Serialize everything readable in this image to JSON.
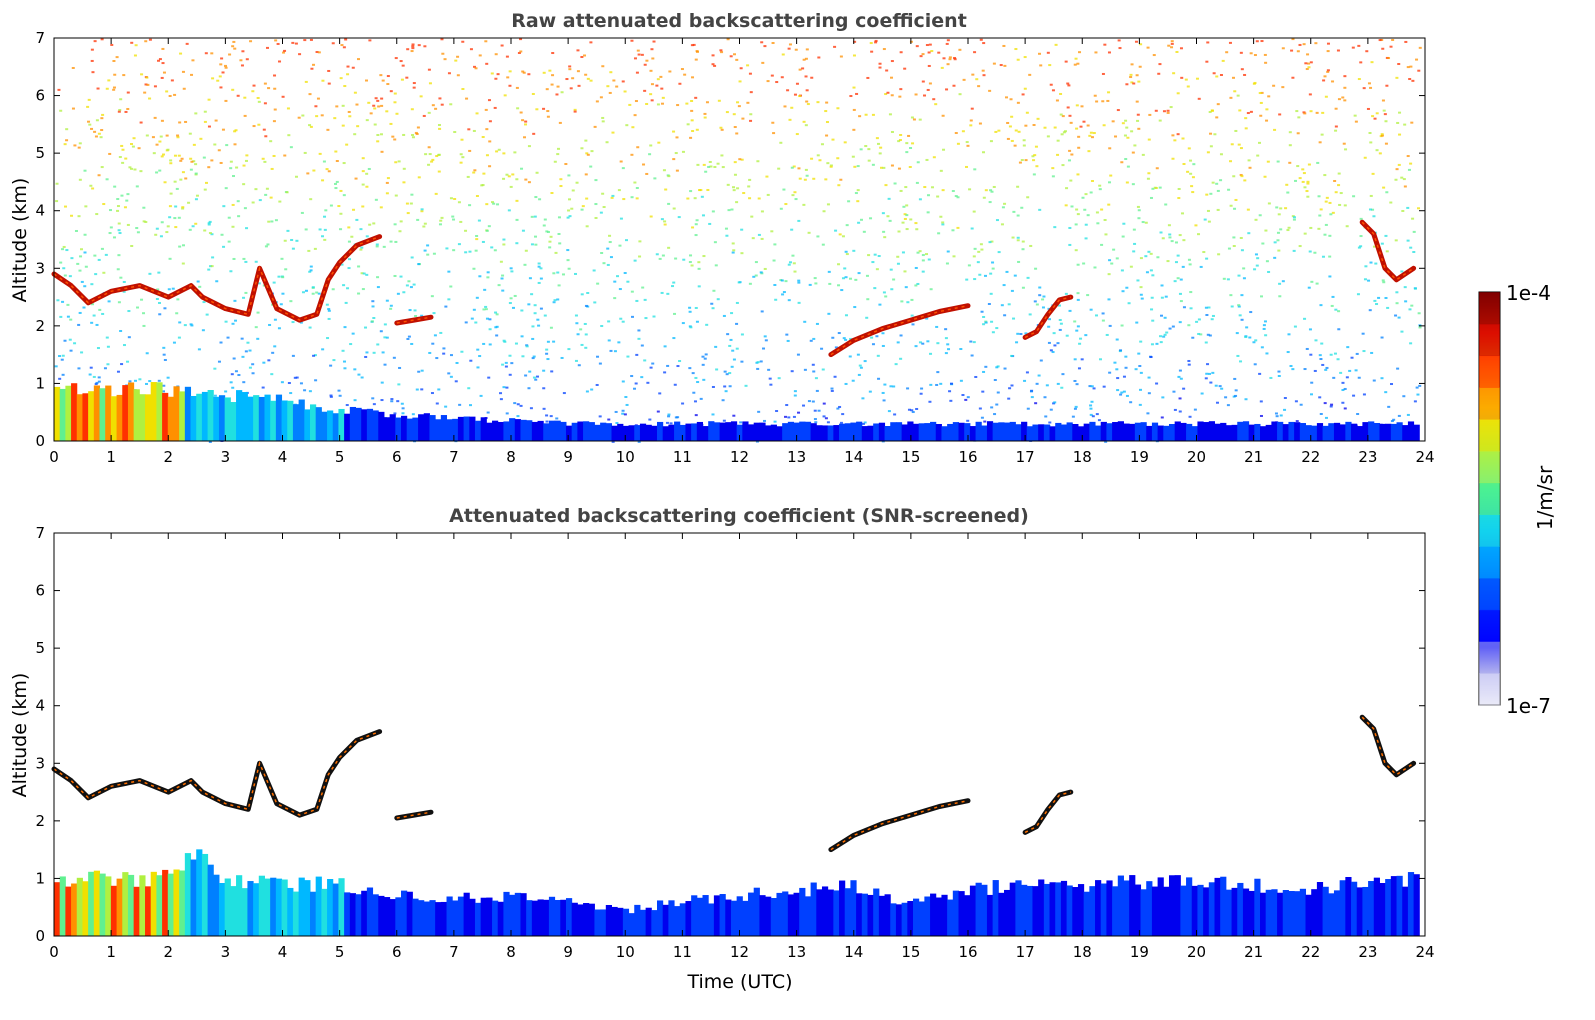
{
  "chart_data": [
    {
      "type": "heatmap",
      "title": "Raw attenuated backscattering coefficient",
      "xlabel": "",
      "ylabel": "Altitude (km)",
      "xlim": [
        0,
        24
      ],
      "ylim": [
        0,
        7
      ],
      "x_ticks": [
        "0",
        "1",
        "2",
        "3",
        "4",
        "5",
        "6",
        "7",
        "8",
        "9",
        "10",
        "11",
        "12",
        "13",
        "14",
        "15",
        "16",
        "17",
        "18",
        "19",
        "20",
        "21",
        "22",
        "23",
        "24"
      ],
      "y_ticks": [
        "0",
        "1",
        "2",
        "3",
        "4",
        "5",
        "6",
        "7"
      ],
      "grid": false,
      "background_noise": true,
      "features": [
        {
          "kind": "boundary_layer",
          "points": [
            [
              0,
              0.9
            ],
            [
              1,
              0.9
            ],
            [
              2,
              0.9
            ],
            [
              3,
              0.8
            ],
            [
              4,
              0.7
            ],
            [
              5,
              0.55
            ],
            [
              6,
              0.45
            ],
            [
              7,
              0.4
            ],
            [
              8,
              0.35
            ],
            [
              9,
              0.3
            ],
            [
              10,
              0.3
            ],
            [
              11,
              0.3
            ],
            [
              12,
              0.3
            ],
            [
              13,
              0.3
            ],
            [
              14,
              0.3
            ],
            [
              15,
              0.3
            ],
            [
              16,
              0.3
            ],
            [
              17,
              0.3
            ],
            [
              18,
              0.3
            ],
            [
              19,
              0.3
            ],
            [
              20,
              0.3
            ],
            [
              21,
              0.3
            ],
            [
              22,
              0.3
            ],
            [
              23,
              0.3
            ],
            [
              23.9,
              0.3
            ]
          ]
        },
        {
          "kind": "cloud",
          "points": [
            [
              0,
              2.9
            ],
            [
              0.3,
              2.7
            ],
            [
              0.6,
              2.4
            ],
            [
              1.0,
              2.6
            ],
            [
              1.5,
              2.7
            ],
            [
              2.0,
              2.5
            ],
            [
              2.4,
              2.7
            ],
            [
              2.6,
              2.5
            ],
            [
              3.0,
              2.3
            ],
            [
              3.4,
              2.2
            ],
            [
              3.6,
              3.0
            ],
            [
              3.9,
              2.3
            ],
            [
              4.3,
              2.1
            ],
            [
              4.6,
              2.2
            ],
            [
              4.8,
              2.8
            ],
            [
              5.0,
              3.1
            ],
            [
              5.3,
              3.4
            ],
            [
              5.7,
              3.55
            ]
          ]
        },
        {
          "kind": "cloud",
          "points": [
            [
              6.0,
              2.05
            ],
            [
              6.3,
              2.1
            ],
            [
              6.6,
              2.15
            ]
          ]
        },
        {
          "kind": "cloud",
          "points": [
            [
              13.6,
              1.5
            ],
            [
              14.0,
              1.75
            ],
            [
              14.5,
              1.95
            ],
            [
              15.0,
              2.1
            ],
            [
              15.5,
              2.25
            ],
            [
              16.0,
              2.35
            ]
          ]
        },
        {
          "kind": "cloud",
          "points": [
            [
              17.0,
              1.8
            ],
            [
              17.2,
              1.9
            ],
            [
              17.4,
              2.2
            ],
            [
              17.6,
              2.45
            ],
            [
              17.8,
              2.5
            ]
          ]
        },
        {
          "kind": "cloud",
          "points": [
            [
              22.9,
              3.8
            ],
            [
              23.1,
              3.6
            ],
            [
              23.3,
              3.0
            ],
            [
              23.5,
              2.8
            ],
            [
              23.8,
              3.0
            ]
          ]
        }
      ]
    },
    {
      "type": "heatmap",
      "title": "Attenuated backscattering coefficient (SNR-screened)",
      "xlabel": "Time (UTC)",
      "ylabel": "Altitude (km)",
      "xlim": [
        0,
        24
      ],
      "ylim": [
        0,
        7
      ],
      "x_ticks": [
        "0",
        "1",
        "2",
        "3",
        "4",
        "5",
        "6",
        "7",
        "8",
        "9",
        "10",
        "11",
        "12",
        "13",
        "14",
        "15",
        "16",
        "17",
        "18",
        "19",
        "20",
        "21",
        "22",
        "23",
        "24"
      ],
      "y_ticks": [
        "0",
        "1",
        "2",
        "3",
        "4",
        "5",
        "6",
        "7"
      ],
      "grid": false,
      "background_noise": false,
      "features": [
        {
          "kind": "boundary_layer",
          "points": [
            [
              0,
              1.0
            ],
            [
              1,
              1.0
            ],
            [
              2,
              1.0
            ],
            [
              2.5,
              1.4
            ],
            [
              3,
              1.0
            ],
            [
              4,
              0.9
            ],
            [
              5,
              0.9
            ],
            [
              6,
              0.7
            ],
            [
              7,
              0.65
            ],
            [
              8,
              0.7
            ],
            [
              9,
              0.6
            ],
            [
              10,
              0.45
            ],
            [
              11,
              0.6
            ],
            [
              12,
              0.7
            ],
            [
              13,
              0.8
            ],
            [
              14,
              0.85
            ],
            [
              15,
              0.55
            ],
            [
              16,
              0.8
            ],
            [
              17,
              0.9
            ],
            [
              18,
              0.9
            ],
            [
              19,
              0.95
            ],
            [
              20,
              1.0
            ],
            [
              21,
              0.9
            ],
            [
              22,
              0.8
            ],
            [
              23,
              0.95
            ],
            [
              23.9,
              1.0
            ]
          ]
        },
        {
          "kind": "cloud",
          "points": [
            [
              0,
              2.9
            ],
            [
              0.3,
              2.7
            ],
            [
              0.6,
              2.4
            ],
            [
              1.0,
              2.6
            ],
            [
              1.5,
              2.7
            ],
            [
              2.0,
              2.5
            ],
            [
              2.4,
              2.7
            ],
            [
              2.6,
              2.5
            ],
            [
              3.0,
              2.3
            ],
            [
              3.4,
              2.2
            ],
            [
              3.6,
              3.0
            ],
            [
              3.9,
              2.3
            ],
            [
              4.3,
              2.1
            ],
            [
              4.6,
              2.2
            ],
            [
              4.8,
              2.8
            ],
            [
              5.0,
              3.1
            ],
            [
              5.3,
              3.4
            ],
            [
              5.7,
              3.55
            ]
          ]
        },
        {
          "kind": "cloud",
          "points": [
            [
              6.0,
              2.05
            ],
            [
              6.3,
              2.1
            ],
            [
              6.6,
              2.15
            ]
          ]
        },
        {
          "kind": "cloud",
          "points": [
            [
              13.6,
              1.5
            ],
            [
              14.0,
              1.75
            ],
            [
              14.5,
              1.95
            ],
            [
              15.0,
              2.1
            ],
            [
              15.5,
              2.25
            ],
            [
              16.0,
              2.35
            ]
          ]
        },
        {
          "kind": "cloud",
          "points": [
            [
              17.0,
              1.8
            ],
            [
              17.2,
              1.9
            ],
            [
              17.4,
              2.2
            ],
            [
              17.6,
              2.45
            ],
            [
              17.8,
              2.5
            ]
          ]
        },
        {
          "kind": "cloud",
          "points": [
            [
              22.9,
              3.8
            ],
            [
              23.1,
              3.6
            ],
            [
              23.3,
              3.0
            ],
            [
              23.5,
              2.8
            ],
            [
              23.8,
              3.0
            ]
          ]
        }
      ]
    }
  ],
  "colorbar": {
    "max_label": "1e-4",
    "min_label": "1e-7",
    "unit_label": "1/m/sr",
    "colors": [
      "#e8e8f8",
      "#b0b0ee",
      "#0000ff",
      "#0050ff",
      "#00a8ff",
      "#20e0e0",
      "#60f070",
      "#c0f040",
      "#f8e000",
      "#ff8000",
      "#ff2000",
      "#c00000",
      "#800000"
    ]
  }
}
